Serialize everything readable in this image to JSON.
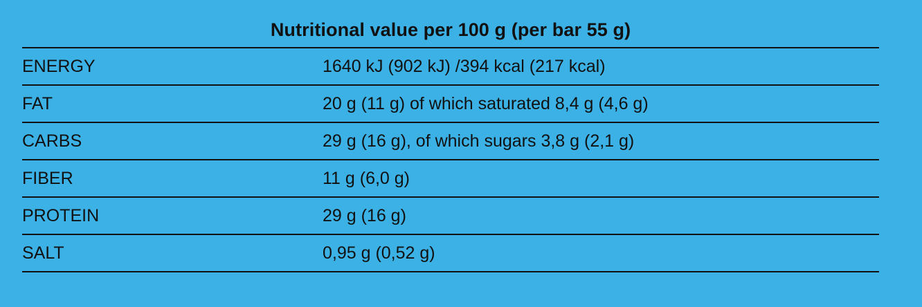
{
  "table": {
    "title": "Nutritional value per 100 g (per bar 55 g)",
    "rows": [
      {
        "label": "ENERGY",
        "value": "1640 kJ (902 kJ) /394 kcal (217 kcal)"
      },
      {
        "label": "FAT",
        "value": "20 g (11 g) of which saturated 8,4 g (4,6 g)"
      },
      {
        "label": "CARBS",
        "value": "29 g (16 g), of which sugars 3,8 g (2,1 g)"
      },
      {
        "label": "FIBER",
        "value": "11 g (6,0 g)"
      },
      {
        "label": "PROTEIN",
        "value": "29 g (16 g)"
      },
      {
        "label": "SALT",
        "value": "0,95 g (0,52 g)"
      }
    ]
  },
  "colors": {
    "background": "#3cb1e6",
    "text": "#111111"
  }
}
